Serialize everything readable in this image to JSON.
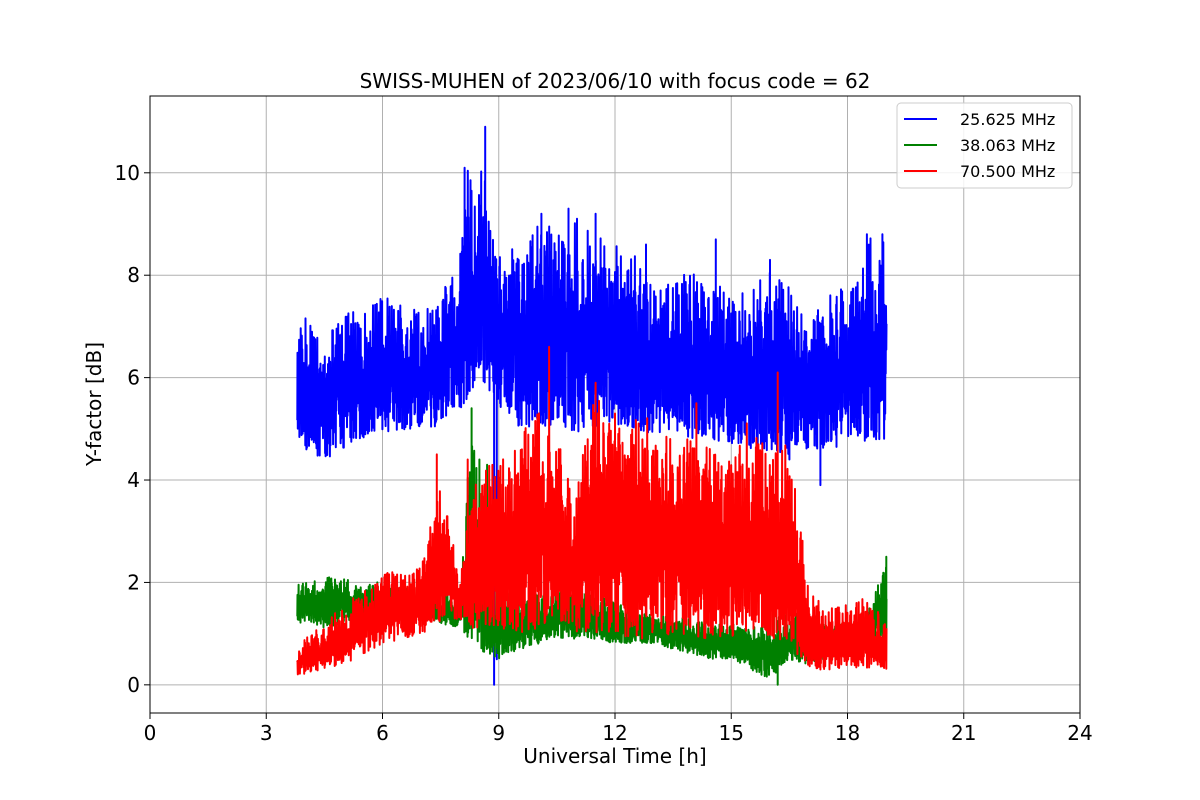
{
  "chart_data": {
    "type": "line",
    "title": "SWISS-MUHEN of 2023/06/10 with focus code = 62",
    "xlabel": "Universal Time [h]",
    "ylabel": "Y-factor [dB]",
    "xlim": [
      0,
      24
    ],
    "ylim": [
      -0.55,
      11.5
    ],
    "xticks": [
      0,
      3,
      6,
      9,
      12,
      15,
      18,
      21,
      24
    ],
    "xtick_labels": [
      "0",
      "3",
      "6",
      "9",
      "12",
      "15",
      "18",
      "21",
      "24"
    ],
    "yticks": [
      0,
      2,
      4,
      6,
      8,
      10
    ],
    "ytick_labels": [
      "0",
      "2",
      "4",
      "6",
      "8",
      "10"
    ],
    "grid": true,
    "legend_position": "top-right",
    "series": [
      {
        "name": "25.625 MHz",
        "color": "#0000ff",
        "x": [
          3.8,
          4.0,
          4.5,
          5.0,
          5.5,
          6.0,
          6.5,
          7.0,
          7.5,
          8.0,
          8.2,
          8.4,
          8.6,
          8.8,
          9.0,
          9.3,
          9.6,
          10.0,
          10.5,
          11.0,
          11.5,
          12.0,
          12.5,
          13.0,
          13.5,
          14.0,
          14.5,
          15.0,
          15.5,
          16.0,
          16.5,
          17.0,
          17.5,
          18.0,
          18.5,
          19.0
        ],
        "min": [
          4.9,
          4.6,
          4.4,
          4.6,
          4.8,
          4.9,
          5.0,
          4.9,
          5.1,
          5.3,
          5.6,
          5.8,
          5.9,
          5.7,
          5.4,
          5.2,
          5.0,
          5.0,
          5.1,
          4.9,
          4.9,
          5.1,
          5.0,
          4.9,
          4.9,
          4.8,
          4.8,
          4.7,
          4.6,
          4.5,
          4.5,
          4.6,
          4.6,
          4.7,
          4.7,
          4.8
        ],
        "max": [
          6.8,
          7.2,
          6.9,
          7.3,
          7.3,
          7.6,
          7.5,
          7.3,
          7.6,
          8.5,
          10.1,
          9.5,
          10.9,
          8.8,
          8.4,
          8.6,
          8.4,
          9.2,
          8.8,
          9.2,
          9.0,
          8.6,
          8.4,
          7.7,
          7.9,
          8.1,
          7.9,
          7.6,
          7.8,
          8.1,
          7.8,
          7.3,
          7.6,
          7.8,
          8.8,
          8.7
        ],
        "spikes": [
          [
            8.12,
            10.1
          ],
          [
            8.65,
            10.9
          ],
          [
            8.9,
            8.0
          ],
          [
            10.1,
            9.2
          ],
          [
            10.8,
            9.3
          ],
          [
            11.5,
            9.2
          ],
          [
            12.8,
            8.6
          ],
          [
            14.6,
            8.7
          ],
          [
            16.0,
            8.3
          ],
          [
            16.5,
            4.4
          ],
          [
            17.3,
            3.9
          ],
          [
            18.5,
            8.8
          ],
          [
            18.9,
            8.8
          ],
          [
            8.88,
            0.0
          ],
          [
            8.95,
            0.5
          ],
          [
            16.3,
            5.0
          ]
        ]
      },
      {
        "name": "38.063 MHz",
        "color": "#008000",
        "x": [
          3.8,
          4.0,
          4.5,
          5.0,
          5.5,
          6.0,
          6.5,
          7.0,
          7.5,
          8.0,
          8.3,
          8.6,
          9.0,
          9.3,
          9.6,
          10.0,
          10.5,
          11.0,
          11.5,
          12.0,
          12.5,
          13.0,
          13.5,
          14.0,
          14.5,
          15.0,
          15.5,
          16.0,
          16.5,
          17.0,
          17.5,
          18.0,
          18.5,
          19.0
        ],
        "min": [
          1.2,
          1.2,
          1.1,
          1.2,
          1.3,
          1.4,
          1.4,
          1.3,
          1.2,
          1.1,
          0.8,
          0.6,
          0.5,
          0.6,
          0.7,
          0.8,
          0.9,
          0.9,
          0.9,
          0.8,
          0.8,
          0.8,
          0.7,
          0.6,
          0.5,
          0.5,
          0.3,
          0.1,
          0.5,
          0.4,
          0.5,
          0.6,
          0.7,
          0.8
        ],
        "max": [
          2.0,
          2.0,
          2.1,
          2.1,
          2.0,
          2.0,
          1.9,
          1.9,
          1.8,
          1.8,
          5.4,
          2.4,
          1.9,
          1.8,
          1.8,
          1.8,
          1.8,
          1.9,
          1.8,
          1.6,
          1.5,
          1.4,
          1.3,
          1.3,
          1.2,
          1.2,
          1.1,
          1.3,
          1.4,
          1.4,
          1.2,
          1.2,
          1.4,
          2.5
        ],
        "spikes": [
          [
            8.3,
            5.4
          ],
          [
            8.5,
            4.4
          ],
          [
            8.7,
            4.3
          ],
          [
            16.2,
            0.0
          ],
          [
            16.1,
            1.6
          ],
          [
            19.0,
            2.5
          ]
        ]
      },
      {
        "name": "70.500 MHz",
        "color": "#ff0000",
        "x": [
          3.8,
          4.0,
          4.5,
          5.0,
          5.5,
          6.0,
          6.5,
          7.0,
          7.5,
          8.0,
          8.3,
          8.6,
          9.0,
          9.5,
          10.0,
          10.5,
          11.0,
          11.5,
          12.0,
          12.5,
          13.0,
          13.5,
          14.0,
          14.5,
          15.0,
          15.5,
          16.0,
          16.5,
          17.0,
          17.5,
          18.0,
          18.5,
          19.0
        ],
        "min": [
          0.2,
          0.2,
          0.3,
          0.4,
          0.6,
          0.8,
          0.9,
          1.0,
          1.2,
          1.3,
          1.0,
          1.2,
          1.1,
          1.0,
          1.1,
          1.2,
          1.0,
          1.0,
          1.0,
          0.9,
          0.9,
          1.0,
          0.9,
          0.9,
          0.9,
          1.0,
          0.9,
          0.8,
          0.2,
          0.3,
          0.3,
          0.3,
          0.3
        ],
        "max": [
          0.7,
          0.9,
          1.2,
          1.6,
          1.8,
          2.2,
          2.2,
          2.3,
          4.1,
          2.0,
          4.0,
          4.4,
          4.3,
          4.8,
          5.5,
          4.9,
          3.8,
          6.0,
          5.3,
          5.3,
          5.2,
          4.9,
          5.0,
          4.7,
          4.7,
          5.3,
          5.0,
          4.6,
          1.9,
          1.5,
          1.6,
          1.7,
          1.3
        ],
        "spikes": [
          [
            7.4,
            4.5
          ],
          [
            8.2,
            4.4
          ],
          [
            10.3,
            6.6
          ],
          [
            11.5,
            5.9
          ],
          [
            12.0,
            5.3
          ],
          [
            16.2,
            6.1
          ],
          [
            15.7,
            4.7
          ],
          [
            14.1,
            5.5
          ]
        ]
      }
    ]
  }
}
